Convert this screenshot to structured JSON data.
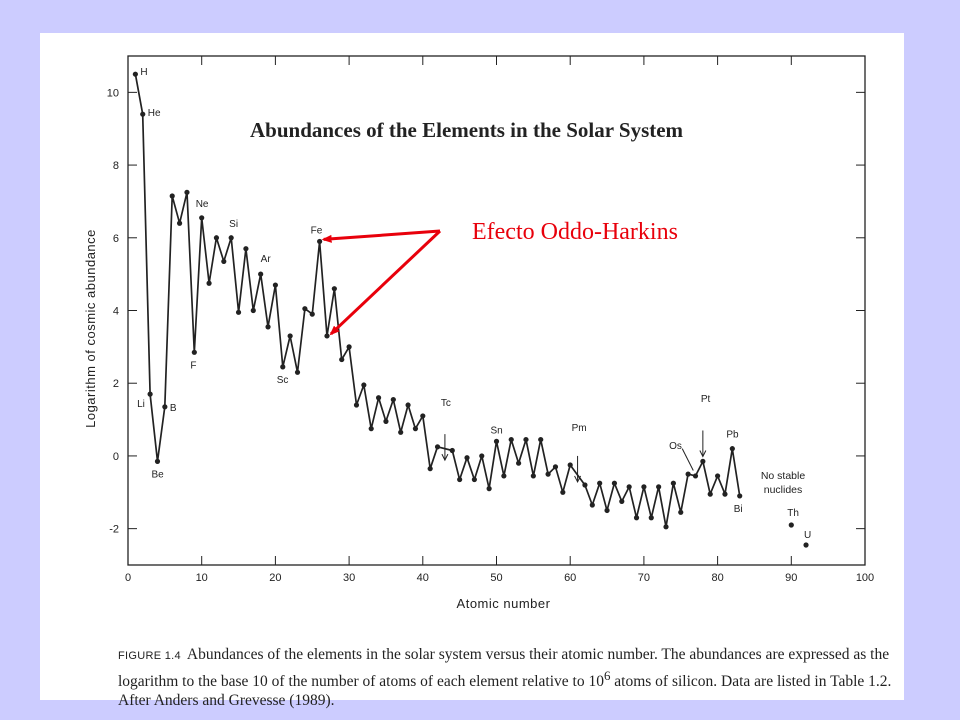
{
  "chart_data": {
    "type": "line",
    "title": "Abundances of the Elements in the Solar System",
    "xlabel": "Atomic number",
    "ylabel": "Logarithm of cosmic abundance",
    "xlim": [
      0,
      100
    ],
    "ylim": [
      -3,
      11
    ],
    "xticks": [
      0,
      10,
      20,
      30,
      40,
      50,
      60,
      70,
      80,
      90,
      100
    ],
    "yticks": [
      -2,
      0,
      2,
      4,
      6,
      8,
      10
    ],
    "grid": false,
    "series": [
      {
        "x": [
          1,
          2,
          3,
          4,
          5,
          6,
          7,
          8,
          9,
          10,
          11,
          12,
          13,
          14,
          15,
          16,
          17,
          18,
          19,
          20,
          21,
          22,
          23,
          24,
          25,
          26,
          27,
          28,
          29,
          30,
          31,
          32,
          33,
          34,
          35,
          36,
          37,
          38,
          39,
          40,
          41,
          42,
          44,
          45,
          46,
          47,
          48,
          49,
          50,
          51,
          52,
          53,
          54,
          55,
          56,
          57,
          58,
          59,
          60,
          62,
          63,
          64,
          65,
          66,
          67,
          68,
          69,
          70,
          71,
          72,
          73,
          74,
          75,
          76,
          77,
          78,
          79,
          80,
          81,
          82,
          83
        ],
        "values": [
          10.5,
          9.4,
          1.7,
          -0.15,
          1.35,
          7.15,
          6.4,
          7.25,
          2.85,
          6.55,
          4.75,
          6,
          5.35,
          6,
          3.95,
          5.7,
          4.0,
          5.0,
          3.55,
          4.7,
          2.45,
          3.3,
          2.3,
          4.05,
          3.9,
          5.9,
          3.3,
          4.6,
          2.65,
          3.0,
          1.4,
          1.95,
          0.75,
          1.6,
          0.95,
          1.55,
          0.65,
          1.4,
          0.75,
          1.1,
          -0.35,
          0.25,
          0.15,
          -0.65,
          -0.05,
          -0.65,
          0.0,
          -0.9,
          0.4,
          -0.55,
          0.45,
          -0.2,
          0.45,
          -0.55,
          0.45,
          -0.5,
          -0.3,
          -1.0,
          -0.25,
          -0.8,
          -1.35,
          -0.75,
          -1.5,
          -0.75,
          -1.25,
          -0.85,
          -1.7,
          -0.85,
          -1.7,
          -0.85,
          -1.95,
          -0.75,
          -1.55,
          -0.5,
          -0.55,
          -0.15,
          -1.05,
          -0.55,
          -1.05,
          0.2,
          -1.1
        ]
      },
      {
        "x": [
          90,
          92
        ],
        "values": [
          -1.9,
          -2.45
        ]
      }
    ],
    "point_labels": [
      {
        "text": "H",
        "x": 1,
        "y": 10.5
      },
      {
        "text": "He",
        "x": 2,
        "y": 9.4
      },
      {
        "text": "Li",
        "x": 3,
        "y": 1.7
      },
      {
        "text": "Be",
        "x": 4,
        "y": -0.15
      },
      {
        "text": "B",
        "x": 5,
        "y": 1.35
      },
      {
        "text": "Ne",
        "x": 10,
        "y": 6.55
      },
      {
        "text": "F",
        "x": 9,
        "y": 2.85
      },
      {
        "text": "Si",
        "x": 14,
        "y": 6
      },
      {
        "text": "Ar",
        "x": 18,
        "y": 5.0
      },
      {
        "text": "Sc",
        "x": 21,
        "y": 2.45
      },
      {
        "text": "Fe",
        "x": 26,
        "y": 5.9
      },
      {
        "text": "Tc",
        "x": 43,
        "y": 0.6
      },
      {
        "text": "Sn",
        "x": 50,
        "y": 0.4
      },
      {
        "text": "Pm",
        "x": 61,
        "y": 0.0
      },
      {
        "text": "Os",
        "x": 76,
        "y": -0.5
      },
      {
        "text": "Pt",
        "x": 78,
        "y": 0.6
      },
      {
        "text": "Pb",
        "x": 82,
        "y": 0.2
      },
      {
        "text": "Bi",
        "x": 83,
        "y": -1.1
      },
      {
        "text": "Th",
        "x": 90,
        "y": -1.9
      },
      {
        "text": "U",
        "x": 92,
        "y": -2.45
      }
    ],
    "gap_markers_x": [
      43,
      61,
      78
    ],
    "note_lines": [
      "No stable",
      "nuclides"
    ],
    "annotation": {
      "text": "Efecto Oddo-Harkins",
      "color": "#e8000b",
      "points_to": [
        {
          "x": 26,
          "y": 5.9
        },
        {
          "x": 27,
          "y": 3.3
        }
      ]
    }
  },
  "caption": {
    "figure_label": "FIGURE 1.4",
    "text_before_exponent": "Abundances of the elements in the solar system versus their atomic number. The abundances are expressed as the logarithm to the base 10 of the number of atoms of each element relative to 10",
    "exponent": "6",
    "text_after_exponent": " atoms of silicon. Data are listed in Table 1.2. After Anders and Grevesse (1989)."
  }
}
